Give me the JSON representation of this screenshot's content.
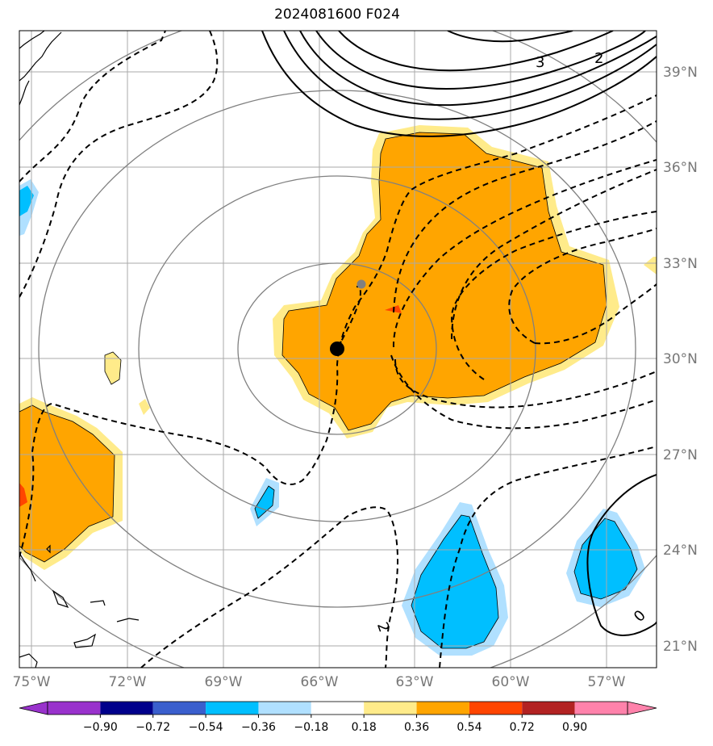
{
  "title": "2024081600 F024",
  "lat_labels": [
    "39°N",
    "36°N",
    "33°N",
    "30°N",
    "27°N",
    "24°N",
    "21°N"
  ],
  "lon_labels": [
    "75°W",
    "72°W",
    "69°W",
    "66°W",
    "63°W",
    "60°W",
    "57°W"
  ],
  "contour_labels": [
    "3",
    "2",
    "2",
    "0"
  ],
  "colorbar": {
    "tick_labels": [
      "−0.90",
      "−0.72",
      "−0.54",
      "−0.36",
      "−0.18",
      "0.18",
      "0.36",
      "0.54",
      "0.72",
      "0.90"
    ],
    "colors": [
      "#9932cc",
      "#00008b",
      "#3a5fcd",
      "#00bfff",
      "#b0e0ff",
      "#ffffff",
      "#ffeb8a",
      "#ffa500",
      "#ff4500",
      "#b22222",
      "#ff82ab"
    ]
  },
  "colors": {
    "positive_fill": "#ffa500",
    "positive_edge": "#ffeb8a",
    "negative_fill": "#00bfff",
    "negative_edge": "#b0e0ff",
    "grid": "#aaaaaa",
    "range_rings": "#808080"
  },
  "markers": [
    {
      "name": "storm-center-marker",
      "lon": -65.6,
      "lat": 30.3
    },
    {
      "name": "previous-position-marker",
      "lon": -64.7,
      "lat": 32.3
    }
  ]
}
